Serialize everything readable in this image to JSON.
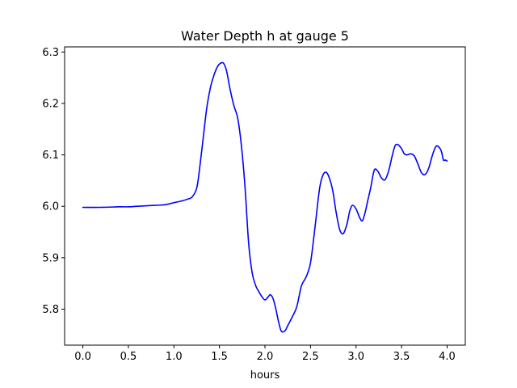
{
  "chart_data": {
    "type": "line",
    "title": "Water Depth h at gauge 5",
    "xlabel": "hours",
    "ylabel": "",
    "xlim": [
      -0.2,
      4.2
    ],
    "ylim": [
      5.73,
      6.31
    ],
    "x_ticks": [
      0.0,
      0.5,
      1.0,
      1.5,
      2.0,
      2.5,
      3.0,
      3.5,
      4.0
    ],
    "x_tick_labels": [
      "0.0",
      "0.5",
      "1.0",
      "1.5",
      "2.0",
      "2.5",
      "3.0",
      "3.5",
      "4.0"
    ],
    "y_ticks": [
      5.8,
      5.9,
      6.0,
      6.1,
      6.2,
      6.3
    ],
    "y_tick_labels": [
      "5.8",
      "5.9",
      "6.0",
      "6.1",
      "6.2",
      "6.3"
    ],
    "grid": false,
    "legend": "none",
    "series": [
      {
        "color": "#0000ff",
        "x": [
          0.0,
          0.2,
          0.4,
          0.5,
          0.6,
          0.8,
          0.9,
          1.0,
          1.1,
          1.15,
          1.2,
          1.25,
          1.28,
          1.32,
          1.36,
          1.4,
          1.44,
          1.48,
          1.52,
          1.55,
          1.58,
          1.62,
          1.66,
          1.7,
          1.74,
          1.78,
          1.82,
          1.86,
          1.9,
          1.93,
          1.96,
          2.0,
          2.04,
          2.06,
          2.09,
          2.12,
          2.15,
          2.18,
          2.22,
          2.25,
          2.3,
          2.35,
          2.4,
          2.45,
          2.5,
          2.55,
          2.6,
          2.64,
          2.68,
          2.72,
          2.75,
          2.78,
          2.82,
          2.86,
          2.9,
          2.93,
          2.96,
          3.0,
          3.04,
          3.07,
          3.1,
          3.13,
          3.16,
          3.2,
          3.24,
          3.28,
          3.32,
          3.36,
          3.4,
          3.43,
          3.46,
          3.5,
          3.53,
          3.56,
          3.6,
          3.64,
          3.68,
          3.72,
          3.76,
          3.8,
          3.84,
          3.88,
          3.92,
          3.94,
          3.96,
          3.98,
          4.0
        ],
        "y": [
          5.998,
          5.998,
          5.999,
          5.999,
          6.0,
          6.002,
          6.003,
          6.007,
          6.011,
          6.014,
          6.018,
          6.035,
          6.07,
          6.13,
          6.19,
          6.23,
          6.255,
          6.272,
          6.279,
          6.277,
          6.262,
          6.225,
          6.195,
          6.172,
          6.12,
          6.04,
          5.93,
          5.87,
          5.845,
          5.835,
          5.826,
          5.818,
          5.825,
          5.828,
          5.82,
          5.8,
          5.775,
          5.757,
          5.758,
          5.768,
          5.785,
          5.805,
          5.845,
          5.862,
          5.89,
          5.96,
          6.035,
          6.062,
          6.065,
          6.048,
          6.025,
          5.99,
          5.955,
          5.947,
          5.965,
          5.99,
          6.002,
          5.995,
          5.978,
          5.972,
          5.988,
          6.012,
          6.035,
          6.07,
          6.068,
          6.055,
          6.052,
          6.07,
          6.1,
          6.118,
          6.12,
          6.112,
          6.102,
          6.1,
          6.102,
          6.098,
          6.082,
          6.065,
          6.062,
          6.075,
          6.1,
          6.117,
          6.113,
          6.105,
          6.09,
          6.09,
          6.088
        ]
      }
    ]
  }
}
